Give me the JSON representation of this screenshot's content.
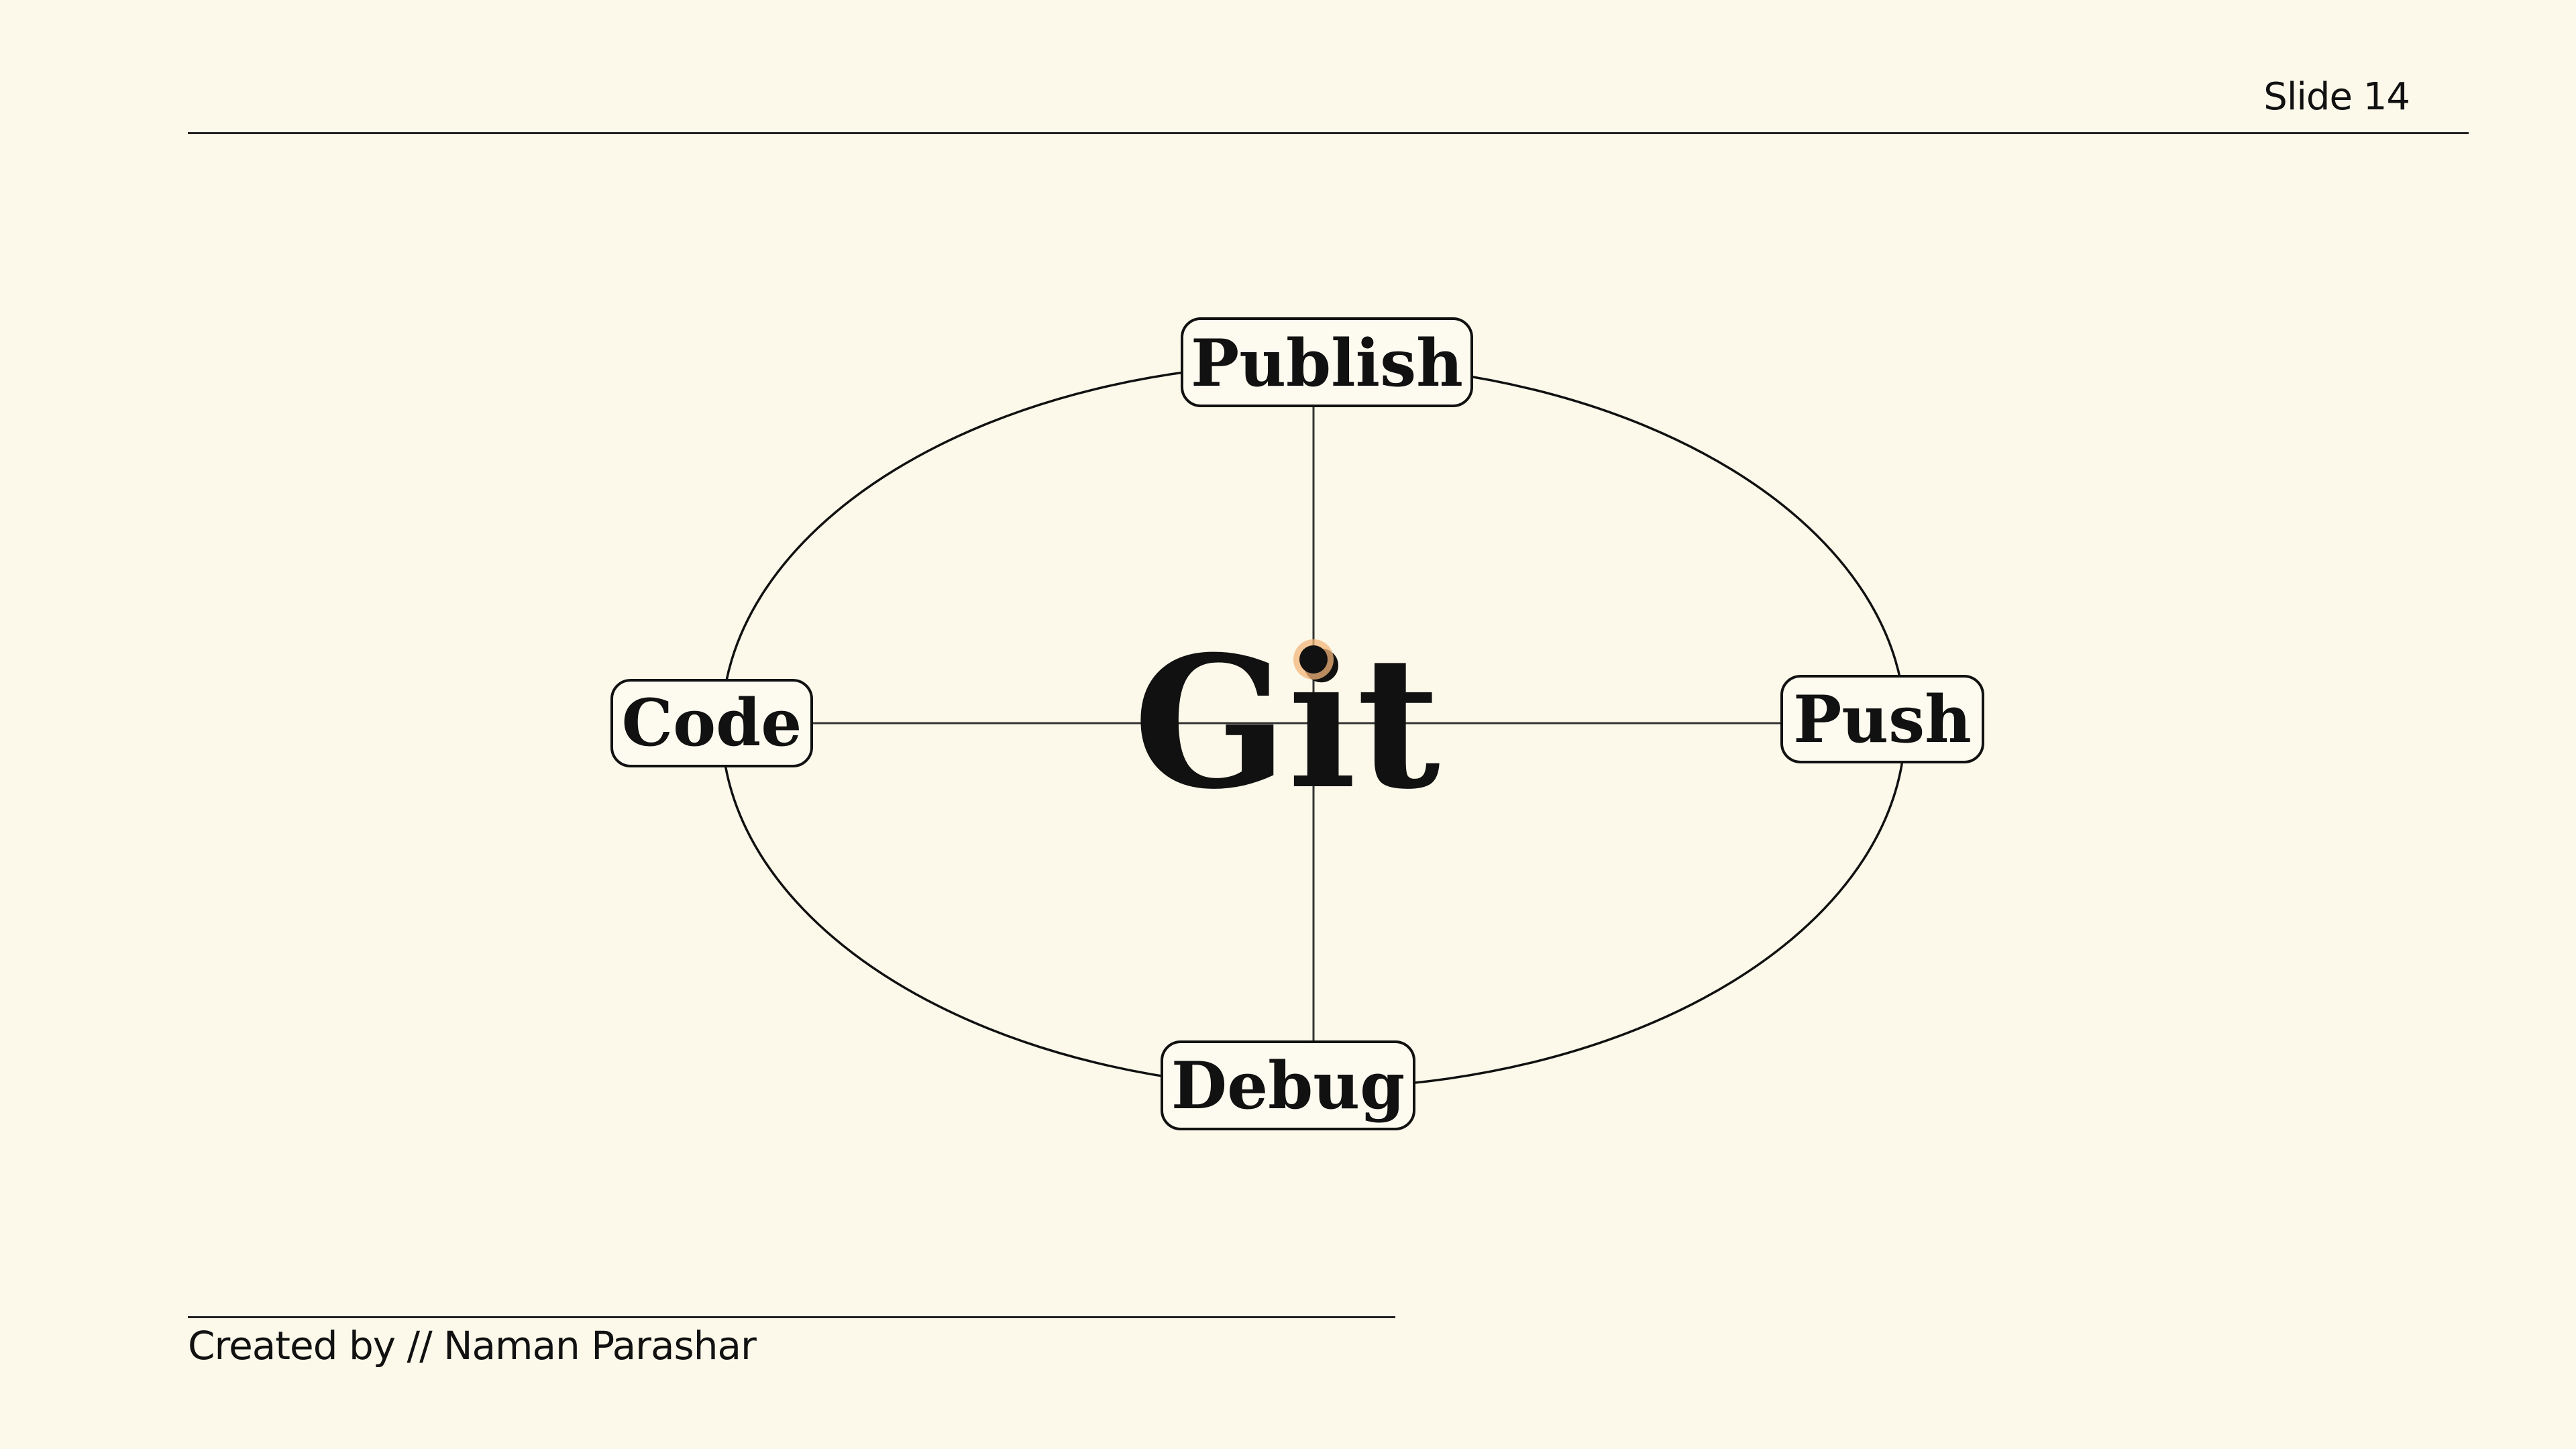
{
  "header": {
    "slide_number": "Slide 14"
  },
  "diagram": {
    "center": "Git",
    "nodes": {
      "top": "Publish",
      "right": "Push",
      "bottom": "Debug",
      "left": "Code"
    },
    "colors": {
      "background": "#fcf9ea",
      "stroke": "#111111",
      "highlight": "#f4b67a"
    }
  },
  "footer": {
    "credit": "Created by // Naman Parashar"
  }
}
